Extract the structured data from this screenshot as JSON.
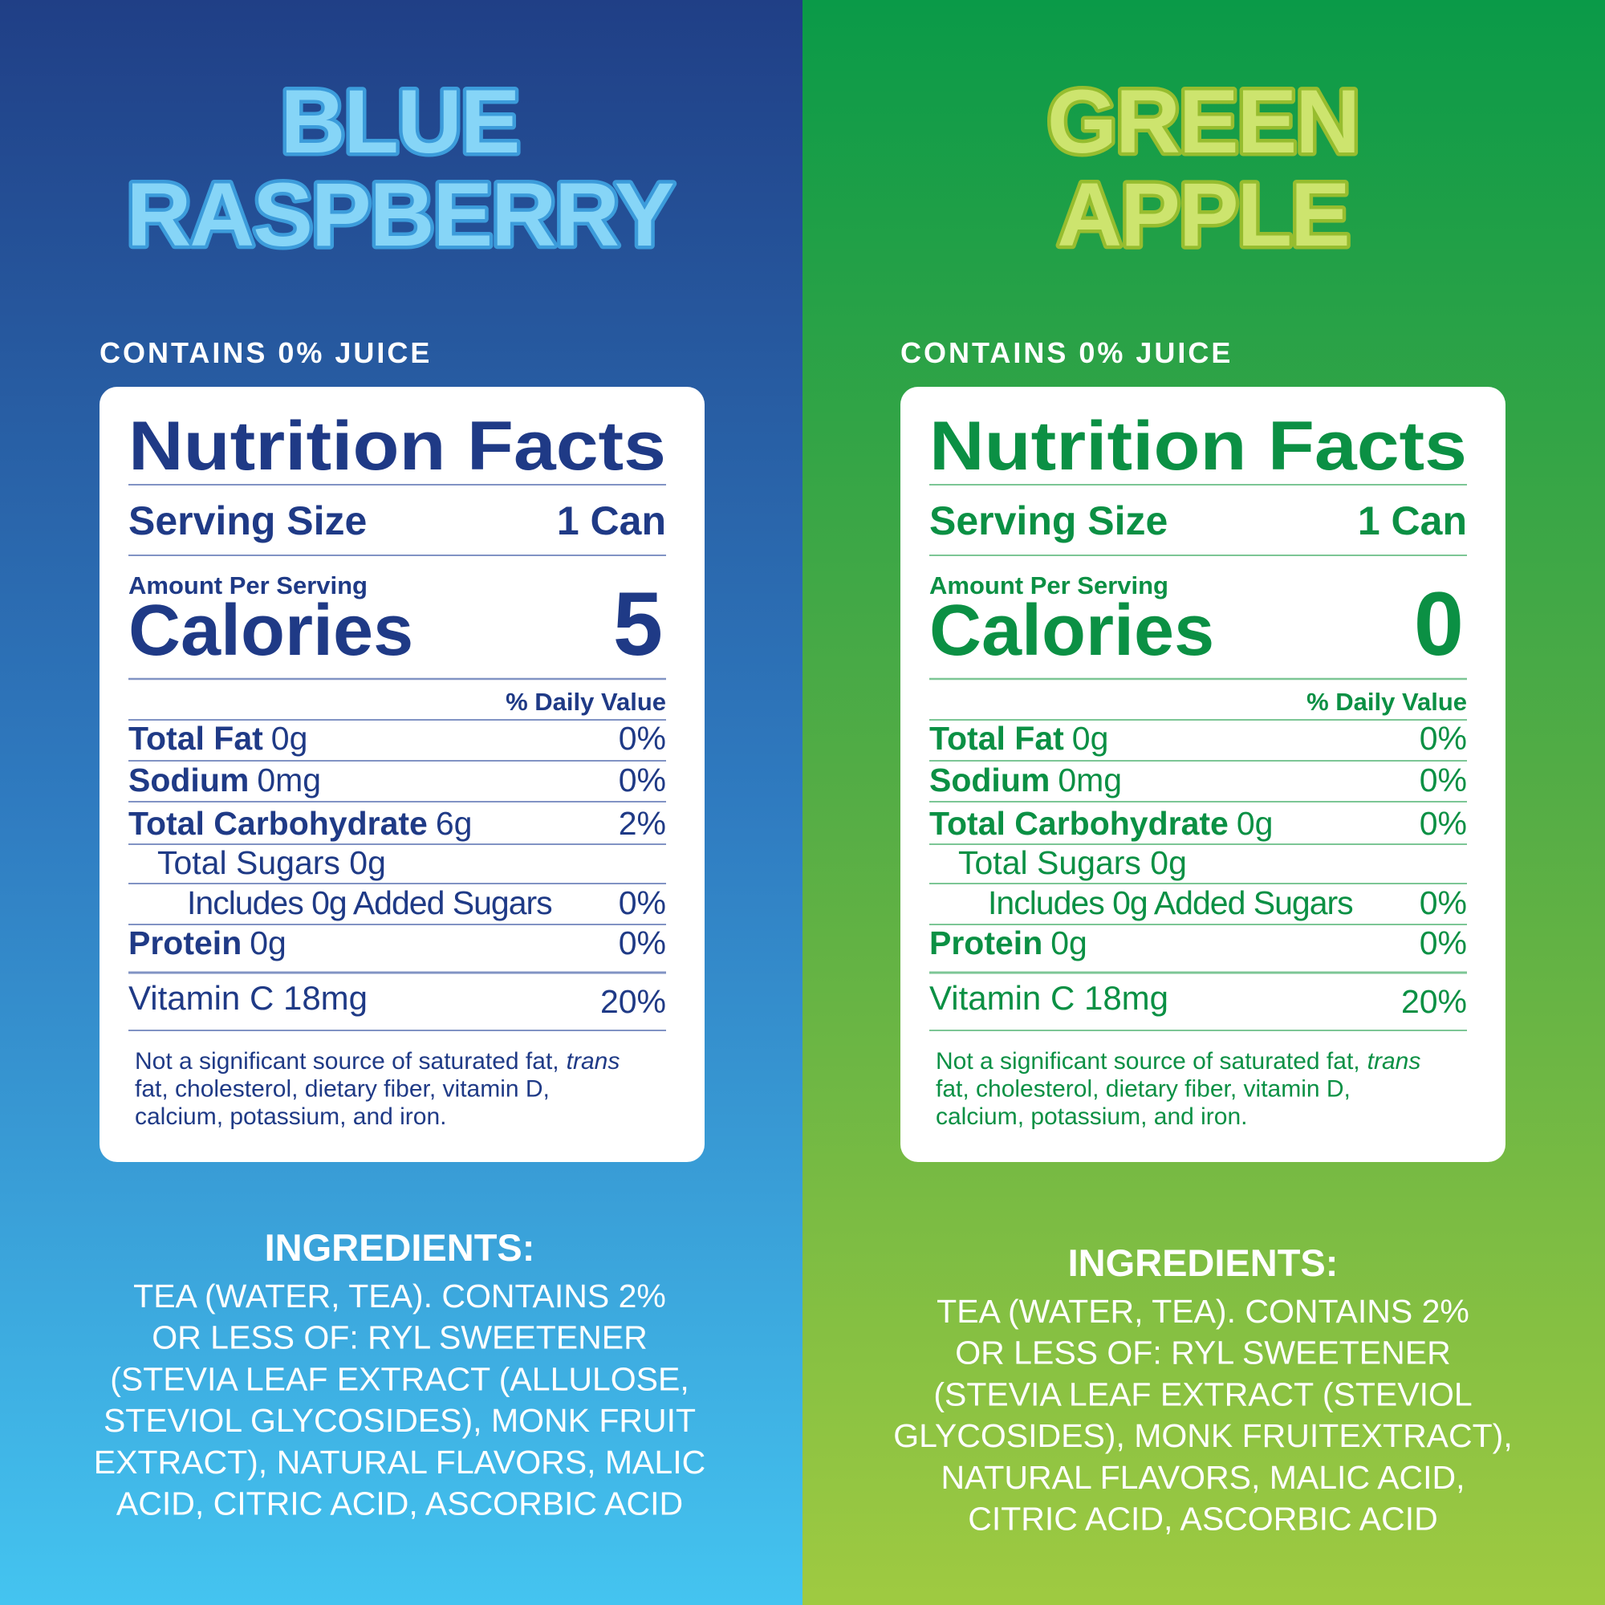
{
  "panels": [
    {
      "title_lines": [
        "BLUE",
        "RASPBERRY"
      ],
      "juice": "CONTAINS 0% JUICE",
      "facts": {
        "heading": "Nutrition Facts",
        "serving_label": "Serving Size",
        "serving_value": "1 Can",
        "amount_per_serving": "Amount Per Serving",
        "calories_label": "Calories",
        "calories_value": "5",
        "daily_value_header": "% Daily Value",
        "rows": [
          {
            "name": "Total Fat",
            "amount": "0g",
            "dv": "0%",
            "level": 0
          },
          {
            "name": "Sodium",
            "amount": "0mg",
            "dv": "0%",
            "level": 0
          },
          {
            "name": "Total Carbohydrate",
            "amount": "6g",
            "dv": "2%",
            "level": 0
          },
          {
            "name": "Total Sugars 0g",
            "level": 1
          },
          {
            "name": "Includes 0g Added Sugars",
            "dv": "0%",
            "level": 2
          },
          {
            "name": "Protein",
            "amount": "0g",
            "dv": "0%",
            "level": 0
          }
        ],
        "vitamin": {
          "label": "Vitamin C 18mg",
          "dv": "20%"
        },
        "footnote_lines": [
          {
            "text": "Not a significant source of saturated fat,",
            "italic": "trans"
          },
          {
            "text": "fat, cholesterol, dietary fiber, vitamin D,"
          },
          {
            "text": "calcium, potassium, and iron."
          }
        ]
      },
      "ingredients_title": "INGREDIENTS:",
      "ingredients_lines": [
        "TEA (WATER, TEA). CONTAINS 2%",
        "OR LESS OF: RYL SWEETENER",
        "(STEVIA LEAF EXTRACT (ALLULOSE,",
        "STEVIOL GLYCOSIDES), MONK FRUIT",
        "EXTRACT), NATURAL FLAVORS, MALIC",
        "ACID, CITRIC ACID, ASCORBIC ACID"
      ]
    },
    {
      "title_lines": [
        "GREEN",
        "APPLE"
      ],
      "juice": "CONTAINS 0% JUICE",
      "facts": {
        "heading": "Nutrition Facts",
        "serving_label": "Serving Size",
        "serving_value": "1 Can",
        "amount_per_serving": "Amount Per Serving",
        "calories_label": "Calories",
        "calories_value": "0",
        "daily_value_header": "% Daily Value",
        "rows": [
          {
            "name": "Total Fat",
            "amount": "0g",
            "dv": "0%",
            "level": 0
          },
          {
            "name": "Sodium",
            "amount": "0mg",
            "dv": "0%",
            "level": 0
          },
          {
            "name": "Total Carbohydrate",
            "amount": "0g",
            "dv": "0%",
            "level": 0
          },
          {
            "name": "Total Sugars 0g",
            "level": 1
          },
          {
            "name": "Includes 0g Added Sugars",
            "dv": "0%",
            "level": 2
          },
          {
            "name": "Protein",
            "amount": "0g",
            "dv": "0%",
            "level": 0
          }
        ],
        "vitamin": {
          "label": "Vitamin C 18mg",
          "dv": "20%"
        },
        "footnote_lines": [
          {
            "text": "Not a significant source of saturated fat,",
            "italic": "trans"
          },
          {
            "text": "fat, cholesterol, dietary fiber, vitamin D,"
          },
          {
            "text": "calcium, potassium, and iron."
          }
        ]
      },
      "ingredients_title": "INGREDIENTS:",
      "ingredients_lines": [
        "TEA (WATER, TEA). CONTAINS 2%",
        "OR LESS OF: RYL SWEETENER",
        "(STEVIA LEAF EXTRACT (STEVIOL",
        "GLYCOSIDES), MONK FRUITEXTRACT),",
        "NATURAL FLAVORS, MALIC ACID,",
        "CITRIC ACID, ASCORBIC ACID"
      ]
    }
  ]
}
